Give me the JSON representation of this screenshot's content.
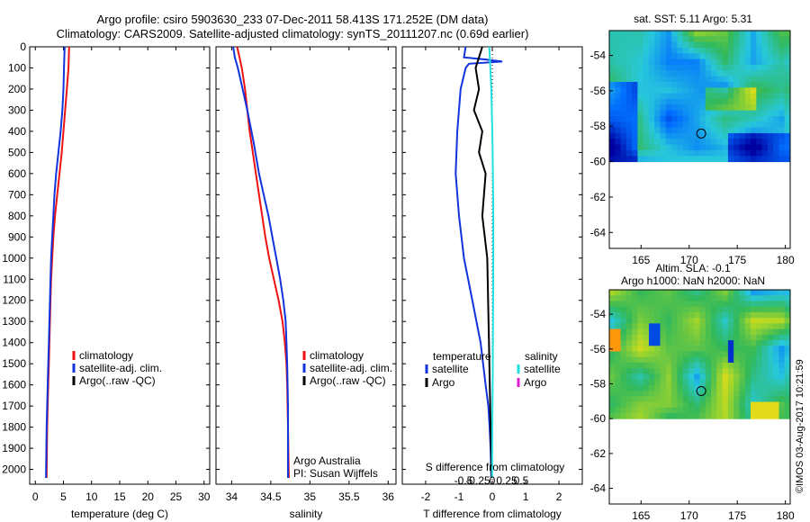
{
  "header": {
    "line1": "Argo profile: csiro 5903630_233 07-Dec-2011 58.413S 171.252E (DM data)",
    "line2": "Climatology: CARS2009. Satellite-adjusted climatology: synTS_20111207.nc (0.69d earlier)"
  },
  "colors": {
    "climatology": "#ee1111",
    "satellite": "#1133dd",
    "argo": "#000000",
    "sal_satellite": "#22e0e0",
    "sal_argo": "#dd22cc"
  },
  "chart_data": [
    {
      "id": "temperature",
      "type": "line",
      "xlabel": "temperature (deg C)",
      "ylabel": "",
      "xlim": [
        -1,
        31
      ],
      "ylim": [
        2070,
        0
      ],
      "xticks": [
        0,
        5,
        10,
        15,
        20,
        25,
        30
      ],
      "yticks": [
        0,
        100,
        200,
        300,
        400,
        500,
        600,
        700,
        800,
        900,
        1000,
        1100,
        1200,
        1300,
        1400,
        1500,
        1600,
        1700,
        1800,
        1900,
        2000
      ],
      "legend": [
        "climatology",
        "satellite-adj. clim.",
        "Argo(..raw -QC)"
      ],
      "series": [
        {
          "name": "climatology",
          "color": "#ee1111",
          "x": [
            6.0,
            5.9,
            5.6,
            5.3,
            5.0,
            4.7,
            4.3,
            3.9,
            3.5,
            3.2,
            3.0,
            2.8,
            2.7,
            2.6,
            2.5,
            2.4,
            2.3,
            2.2,
            2.1,
            2.0
          ],
          "y": [
            0,
            100,
            200,
            300,
            400,
            500,
            600,
            700,
            800,
            900,
            1000,
            1100,
            1200,
            1300,
            1400,
            1500,
            1600,
            1700,
            1800,
            2040
          ]
        },
        {
          "name": "satellite-adj. clim.",
          "color": "#1133dd",
          "x": [
            5.2,
            5.1,
            5.0,
            4.8,
            4.5,
            4.1,
            3.7,
            3.4,
            3.2,
            3.0,
            2.8,
            2.7,
            2.6,
            2.5,
            2.4,
            2.3,
            2.2,
            2.1,
            2.0,
            1.9
          ],
          "y": [
            0,
            100,
            200,
            300,
            400,
            500,
            600,
            700,
            800,
            900,
            1000,
            1100,
            1200,
            1300,
            1400,
            1500,
            1600,
            1700,
            1800,
            2040
          ]
        }
      ]
    },
    {
      "id": "salinity",
      "type": "line",
      "xlabel": "salinity",
      "xlim": [
        33.8,
        36.1
      ],
      "ylim": [
        2070,
        0
      ],
      "xticks": [
        34,
        34.5,
        35,
        35.5,
        36
      ],
      "legend": [
        "climatology",
        "satellite-adj. clim.",
        "Argo(..raw -QC)"
      ],
      "annotation": [
        "Argo Australia",
        "PI: Susan Wijffels"
      ],
      "series": [
        {
          "name": "climatology",
          "color": "#ee1111",
          "x": [
            34.07,
            34.1,
            34.13,
            34.17,
            34.2,
            34.23,
            34.27,
            34.31,
            34.35,
            34.39,
            34.43,
            34.48,
            34.54,
            34.6,
            34.65,
            34.68,
            34.7,
            34.71,
            34.72,
            34.73
          ],
          "y": [
            0,
            50,
            100,
            200,
            300,
            400,
            500,
            600,
            700,
            800,
            900,
            1000,
            1100,
            1200,
            1300,
            1400,
            1500,
            1600,
            1800,
            2040
          ]
        },
        {
          "name": "satellite-adj. clim.",
          "color": "#1133dd",
          "x": [
            34.02,
            34.04,
            34.08,
            34.14,
            34.2,
            34.28,
            34.35,
            34.41,
            34.47,
            34.52,
            34.57,
            34.62,
            34.66,
            34.69,
            34.7,
            34.71,
            34.72,
            34.72
          ],
          "y": [
            0,
            50,
            100,
            200,
            300,
            450,
            600,
            700,
            800,
            900,
            1000,
            1100,
            1200,
            1300,
            1400,
            1500,
            1700,
            2040
          ]
        }
      ]
    },
    {
      "id": "difference",
      "type": "line",
      "xlabel": "T difference from climatology",
      "top_axis_label": "S difference from climatology",
      "xlim": [
        -2.7,
        2.7
      ],
      "ylim": [
        2070,
        0
      ],
      "xticks": [
        -2,
        -1,
        0,
        1,
        2
      ],
      "top_ticks": [
        {
          "value": -0.5,
          "label": "-0.5"
        },
        {
          "value": -0.25,
          "label": "-0.25"
        },
        {
          "value": 0,
          "label": "0"
        },
        {
          "value": 0.25,
          "label": "0.25"
        },
        {
          "value": 0.5,
          "label": "0.5"
        }
      ],
      "legend_left": {
        "title": "temperature",
        "items": [
          "satellite",
          "Argo"
        ]
      },
      "legend_right": {
        "title": "salinity",
        "items": [
          "satellite",
          "Argo"
        ]
      },
      "series": [
        {
          "name": "temperature satellite",
          "color": "#1133dd",
          "x": [
            -0.8,
            -0.85,
            -0.2,
            0.3,
            -0.7,
            -0.8,
            -0.95,
            -1.05,
            -1.1,
            -1.0,
            -0.85,
            -0.6,
            -0.35,
            -0.2,
            -0.12,
            -0.08,
            -0.05,
            -0.03
          ],
          "y": [
            0,
            50,
            60,
            70,
            80,
            100,
            200,
            400,
            600,
            800,
            1000,
            1200,
            1400,
            1600,
            1700,
            1800,
            1900,
            2040
          ]
        },
        {
          "name": "temperature Argo",
          "color": "#000000",
          "x": [
            -0.3,
            -0.5,
            -0.4,
            -0.55,
            -0.3,
            -0.4,
            -0.2,
            -0.3,
            -0.15,
            -0.1,
            -0.05,
            -0.02
          ],
          "y": [
            0,
            100,
            200,
            300,
            400,
            500,
            600,
            800,
            1000,
            1400,
            1800,
            2040
          ]
        },
        {
          "name": "salinity satellite",
          "color": "#22e0e0",
          "x": [
            -0.09,
            -0.06,
            -0.03,
            0.0,
            0.02,
            0.03,
            0.03,
            0.025,
            0.02,
            0.01,
            0.0,
            -0.005
          ],
          "y": [
            0,
            100,
            200,
            400,
            600,
            800,
            1000,
            1200,
            1400,
            1600,
            1800,
            2040
          ]
        }
      ]
    }
  ],
  "maps": {
    "sst": {
      "title": "sat. SST: 5.11 Argo: 5.31",
      "xlim": [
        161.7,
        180.5
      ],
      "ylim": [
        -64.9,
        -52.6
      ],
      "data_lat_min": -60,
      "xticks": [
        165,
        170,
        175,
        180
      ],
      "yticks": [
        -54,
        -56,
        -58,
        -60,
        -62,
        -64
      ],
      "marker": {
        "lon": 171.252,
        "lat": -58.413
      }
    },
    "sla": {
      "title_line1": "Altim. SLA: -0.1",
      "title_line2": "Argo h1000: NaN h2000: NaN",
      "xlim": [
        161.7,
        180.5
      ],
      "ylim": [
        -64.9,
        -52.6
      ],
      "data_lat_min": -60,
      "xticks": [
        165,
        170,
        175,
        180
      ],
      "yticks": [
        -54,
        -56,
        -58,
        -60,
        -62,
        -64
      ],
      "marker": {
        "lon": 171.252,
        "lat": -58.413
      }
    }
  },
  "footer": {
    "stamp": "©IMOS 03-Aug-2017 10:21:59"
  }
}
